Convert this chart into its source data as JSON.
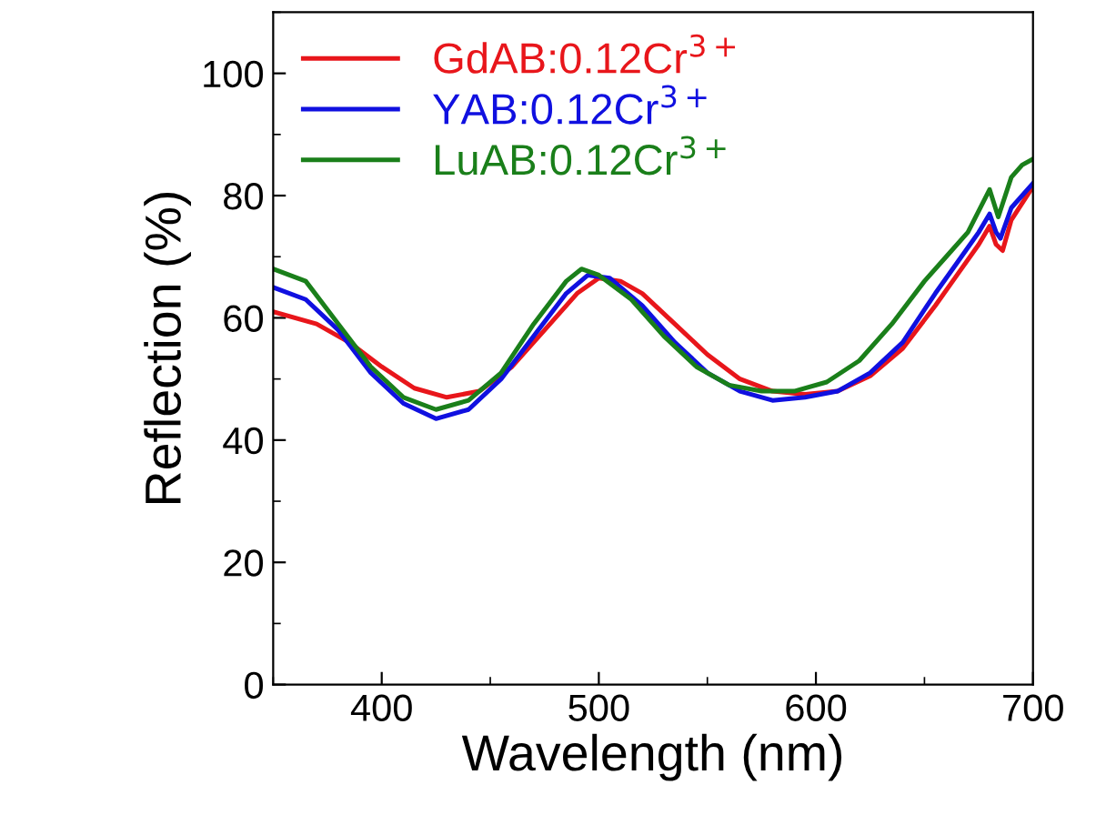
{
  "chart_data": {
    "type": "line",
    "xlabel": "Wavelength (nm)",
    "ylabel": "Reflection (%)",
    "xlim": [
      350,
      700
    ],
    "xticks": [
      400,
      500,
      600,
      700
    ],
    "ylim": [
      0,
      110
    ],
    "yticks": [
      0,
      20,
      40,
      60,
      80,
      100
    ],
    "grid": false,
    "legend": "top left",
    "marker": "none",
    "line_style": "solid",
    "series": [
      {
        "name": "GdAB:0.12Cr$^{3+}$",
        "color": "#e8161b",
        "x": [
          350,
          370,
          385,
          400,
          415,
          430,
          445,
          460,
          475,
          490,
          500,
          510,
          520,
          535,
          550,
          565,
          580,
          595,
          610,
          625,
          640,
          655,
          665,
          675,
          680,
          683,
          686,
          690,
          700
        ],
        "values": [
          61,
          59,
          56,
          52,
          48.5,
          47,
          48,
          52,
          58,
          64,
          66.5,
          66,
          64,
          59,
          54,
          50,
          48,
          47.5,
          48,
          50.5,
          55,
          62,
          67,
          72,
          75,
          72,
          71,
          76,
          81.5
        ]
      },
      {
        "name": "YAB:0.12Cr$^{3+}$",
        "color": "#1010e0",
        "x": [
          350,
          365,
          380,
          395,
          410,
          425,
          440,
          455,
          470,
          485,
          495,
          505,
          520,
          535,
          550,
          565,
          580,
          595,
          610,
          625,
          640,
          655,
          665,
          675,
          680,
          683,
          685,
          690,
          700
        ],
        "values": [
          65,
          63,
          58,
          51,
          46,
          43.5,
          45,
          50,
          57,
          64,
          67,
          66.5,
          62,
          56,
          51,
          48,
          46.5,
          47,
          48,
          51,
          56,
          64,
          69,
          74,
          77,
          74,
          73,
          78,
          82
        ]
      },
      {
        "name": "LuAB:0.12Cr$^{3+}$",
        "color": "#1a7f1a",
        "x": [
          350,
          365,
          380,
          395,
          410,
          425,
          440,
          455,
          470,
          485,
          492,
          500,
          515,
          530,
          545,
          560,
          575,
          590,
          605,
          620,
          635,
          650,
          660,
          670,
          680,
          684,
          690,
          695,
          700
        ],
        "values": [
          68,
          66,
          59,
          52,
          47,
          45,
          46.5,
          51,
          59,
          66,
          68,
          67,
          63,
          57,
          52,
          49,
          48,
          48,
          49.5,
          53,
          59,
          66,
          70,
          74,
          81,
          76.5,
          83,
          85,
          86
        ]
      }
    ]
  }
}
